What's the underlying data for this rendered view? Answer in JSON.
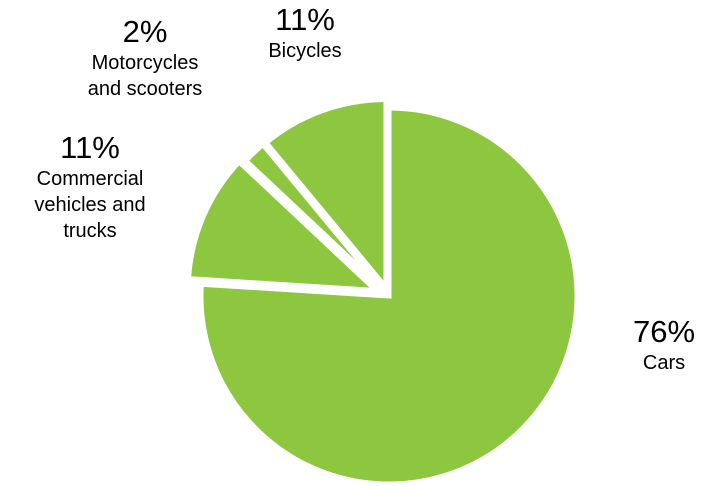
{
  "chart_data": {
    "type": "pie",
    "slice_color": "#8dc63f",
    "exploded": true,
    "slices": [
      {
        "name": "Cars",
        "percent_label": "76%",
        "value": 76
      },
      {
        "name": "Commercial vehicles and trucks",
        "percent_label": "11%",
        "value": 11
      },
      {
        "name": "Motorcycles and scooters",
        "percent_label": "2%",
        "value": 2
      },
      {
        "name": "Bicycles",
        "percent_label": "11%",
        "value": 11
      }
    ],
    "label_lines": {
      "cars": [
        "Cars"
      ],
      "commercial": [
        "Commercial",
        "vehicles and",
        "trucks"
      ],
      "motorcycles": [
        "Motorcycles",
        "and scooters"
      ],
      "bicycles": [
        "Bicycles"
      ]
    }
  }
}
